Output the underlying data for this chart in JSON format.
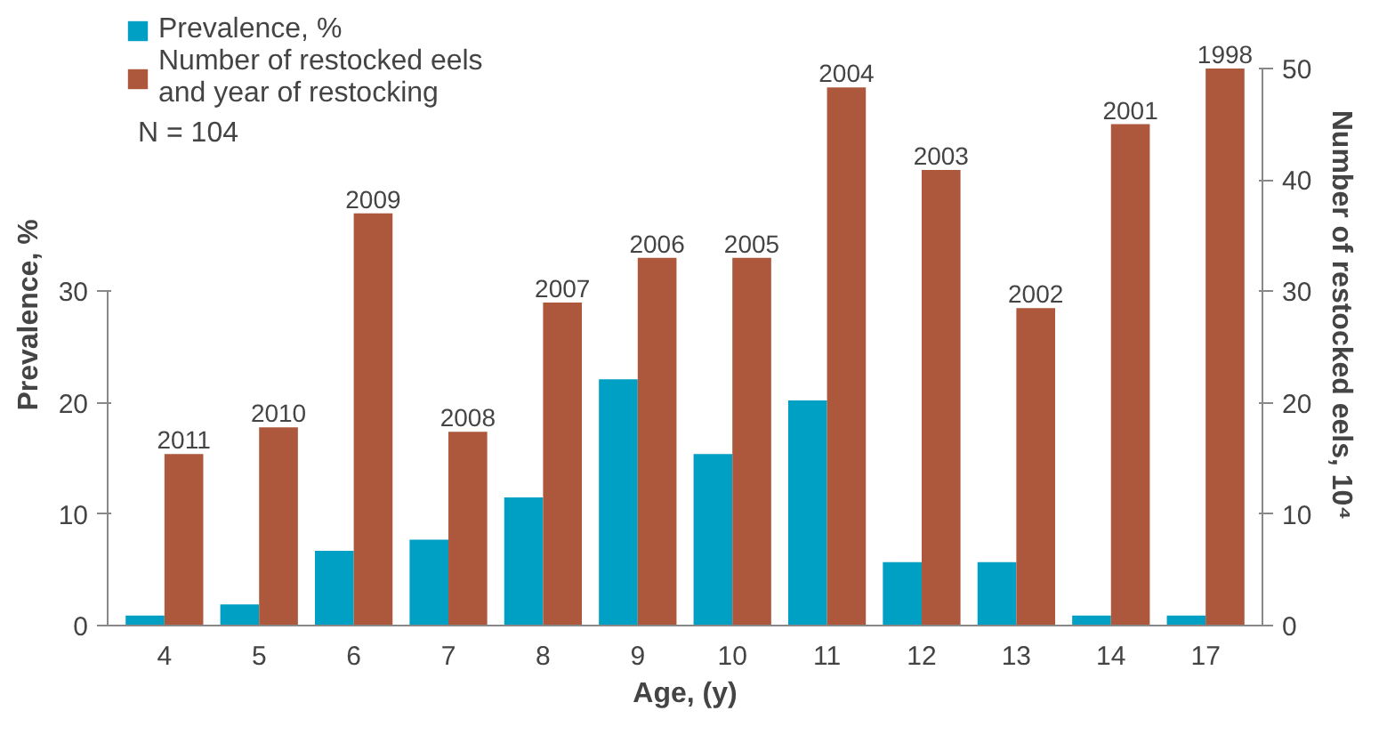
{
  "chart_data": {
    "type": "bar",
    "xlabel": "Age, (y)",
    "ylabel": "Prevalence, %",
    "y2label": "Number of restocked eels, 10⁴",
    "categories": [
      "4",
      "5",
      "6",
      "7",
      "8",
      "9",
      "10",
      "11",
      "12",
      "13",
      "14",
      "17"
    ],
    "series": [
      {
        "name": "Prevalence, %",
        "color": "#00a0c4",
        "values": [
          0.9,
          1.9,
          6.7,
          7.7,
          11.5,
          22.1,
          15.4,
          20.2,
          5.7,
          5.7,
          0.9,
          0.9
        ]
      },
      {
        "name": "Number of restocked eels and year of restocking",
        "color": "#ad583c",
        "axis": "y2",
        "values": [
          15.4,
          17.8,
          37.0,
          17.4,
          29.0,
          33.0,
          33.0,
          48.3,
          40.9,
          28.5,
          45.0,
          50.0
        ]
      }
    ],
    "ylim": [
      0,
      50
    ],
    "yticks": [
      0,
      10,
      20,
      30
    ],
    "y2lim": [
      0,
      50
    ],
    "y2ticks": [
      0,
      10,
      20,
      30,
      40,
      50
    ],
    "annotations": [
      "N = 104",
      {
        "text": "2011",
        "x": "4",
        "y": 15.4
      },
      {
        "text": "2010",
        "x": "5",
        "y": 17.8
      },
      {
        "text": "2009",
        "x": "6",
        "y": 37.0
      },
      {
        "text": "2008",
        "x": "7",
        "y": 17.4
      },
      {
        "text": "2007",
        "x": "8",
        "y": 29.0
      },
      {
        "text": "2006",
        "x": "9",
        "y": 33.0
      },
      {
        "text": "2005",
        "x": "10",
        "y": 33.0
      },
      {
        "text": "2004",
        "x": "11",
        "y": 48.3
      },
      {
        "text": "2003",
        "x": "12",
        "y": 40.9
      },
      {
        "text": "2002",
        "x": "13",
        "y": 28.5
      },
      {
        "text": "2001",
        "x": "14",
        "y": 45.0
      },
      {
        "text": "1998",
        "x": "17",
        "y": 50.0
      }
    ],
    "legend": "top left",
    "grid": false
  }
}
